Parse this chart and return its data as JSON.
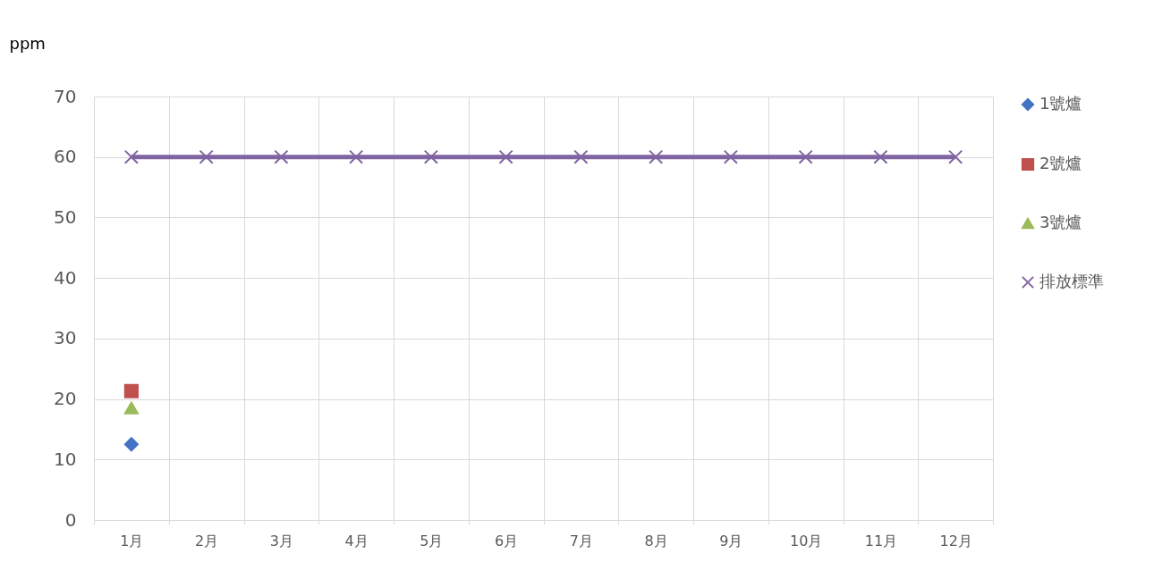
{
  "chart_data": {
    "type": "line",
    "ylabel": "ppm",
    "categories": [
      "1月",
      "2月",
      "3月",
      "4月",
      "5月",
      "6月",
      "7月",
      "8月",
      "9月",
      "10月",
      "11月",
      "12月"
    ],
    "series": [
      {
        "name": "1號爐",
        "color": "#4472c4",
        "marker": "diamond",
        "values": [
          12.5,
          null,
          null,
          null,
          null,
          null,
          null,
          null,
          null,
          null,
          null,
          null
        ]
      },
      {
        "name": "2號爐",
        "color": "#c0504d",
        "marker": "square",
        "values": [
          21.3,
          null,
          null,
          null,
          null,
          null,
          null,
          null,
          null,
          null,
          null,
          null
        ]
      },
      {
        "name": "3號爐",
        "color": "#9bbb59",
        "marker": "triangle",
        "values": [
          18.5,
          null,
          null,
          null,
          null,
          null,
          null,
          null,
          null,
          null,
          null,
          null
        ]
      },
      {
        "name": "排放標準",
        "color": "#8064a2",
        "marker": "cross",
        "values": [
          60,
          60,
          60,
          60,
          60,
          60,
          60,
          60,
          60,
          60,
          60,
          60
        ]
      }
    ],
    "ylim": [
      0,
      70
    ],
    "yticks": [
      0,
      10,
      20,
      30,
      40,
      50,
      60,
      70
    ],
    "grid": true,
    "legend": "right"
  }
}
